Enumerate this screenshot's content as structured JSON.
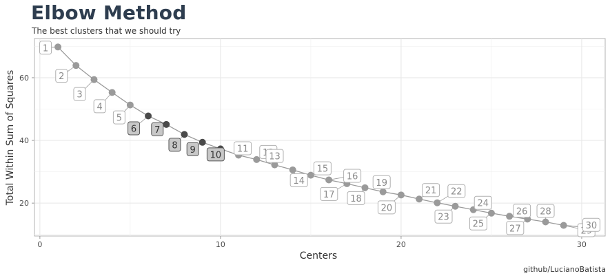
{
  "chart_data": {
    "type": "line",
    "title": "Elbow Method",
    "subtitle": "The best clusters that we should try",
    "xlabel": "Centers",
    "ylabel": "Total Within Sum of Squares",
    "caption": "github/LucianoBatista",
    "xlim": [
      -0.3,
      31.3
    ],
    "ylim": [
      9.5,
      72.5
    ],
    "xticks": [
      0,
      10,
      20,
      30
    ],
    "yticks": [
      20,
      40,
      60
    ],
    "grid": true,
    "x": [
      1,
      2,
      3,
      4,
      5,
      6,
      7,
      8,
      9,
      10,
      11,
      12,
      13,
      14,
      15,
      16,
      17,
      18,
      19,
      20,
      21,
      22,
      23,
      24,
      25,
      26,
      27,
      28,
      29,
      30
    ],
    "y": [
      69.8,
      63.9,
      59.4,
      55.3,
      51.3,
      47.8,
      45.1,
      41.9,
      39.4,
      37.3,
      35.3,
      33.9,
      32.2,
      30.6,
      28.9,
      27.4,
      26.2,
      24.9,
      23.6,
      22.6,
      21.3,
      20.1,
      19.0,
      17.9,
      16.8,
      15.8,
      14.9,
      14.0,
      12.9,
      12.4
    ],
    "highlighted": [
      6,
      7,
      8,
      9,
      10
    ],
    "colors": {
      "point": "#9a9a9a",
      "point_highlight": "#4a4a4a",
      "line": "#9a9a9a",
      "label_text": "#8a8a8a",
      "label_text_highlight": "#333333",
      "label_fill_highlight": "#c8c8c8",
      "title": "#2e3d4f"
    }
  }
}
